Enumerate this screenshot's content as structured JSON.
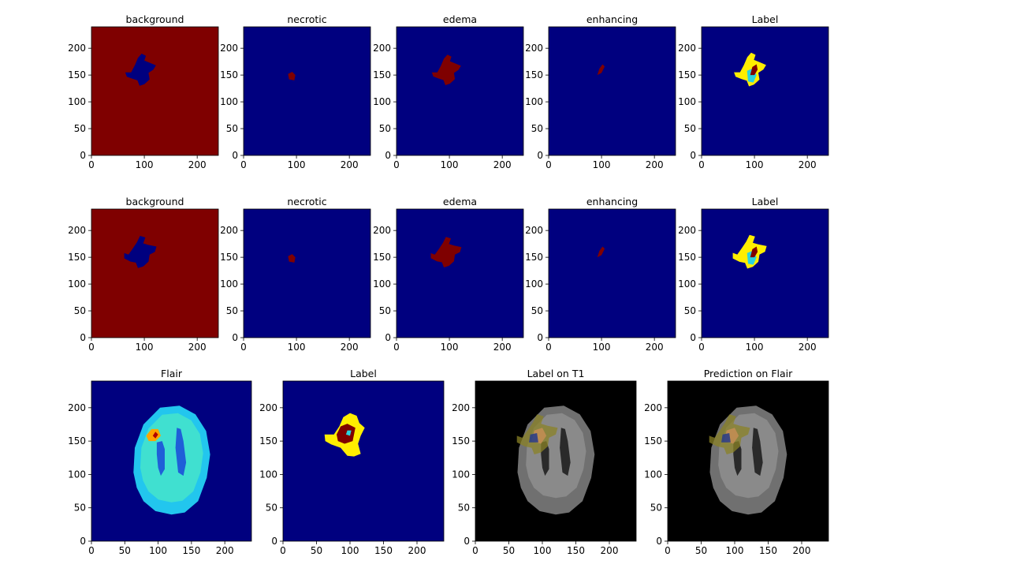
{
  "figure": {
    "panels": [
      {
        "title": "background",
        "map": "background",
        "seg": "s1"
      },
      {
        "title": "necrotic",
        "map": "necrotic",
        "seg": "s1"
      },
      {
        "title": "edema",
        "map": "edema",
        "seg": "s1"
      },
      {
        "title": "enhancing",
        "map": "enhancing",
        "seg": "s1"
      },
      {
        "title": "Label",
        "map": "label",
        "seg": "s1"
      },
      {
        "title": "background",
        "map": "background",
        "seg": "s2"
      },
      {
        "title": "necrotic",
        "map": "necrotic",
        "seg": "s2"
      },
      {
        "title": "edema",
        "map": "edema",
        "seg": "s2"
      },
      {
        "title": "enhancing",
        "map": "enhancing",
        "seg": "s2"
      },
      {
        "title": "Label",
        "map": "label",
        "seg": "s2"
      },
      {
        "title": "Flair",
        "map": "flair",
        "seg": "s2"
      },
      {
        "title": "Label",
        "map": "labelbig",
        "seg": "s3"
      },
      {
        "title": "Label on T1",
        "map": "t1label",
        "seg": "s2"
      },
      {
        "title": "Prediction on Flair",
        "map": "t1pred",
        "seg": "s2"
      }
    ],
    "x_ticks": [
      "0",
      "100",
      "200"
    ],
    "x_ticks_wide": [
      "0",
      "50",
      "100",
      "150",
      "200"
    ],
    "y_ticks": [
      "0",
      "50",
      "100",
      "150",
      "200"
    ],
    "axis_range": [
      0,
      240
    ],
    "colors": {
      "jet_low": "#00007f",
      "jet_high": "#7f0000",
      "label_edema": "#ffee00",
      "label_enhancing": "#2ad3de",
      "t1_background": "#000000",
      "t1_brain": "#707070"
    }
  }
}
